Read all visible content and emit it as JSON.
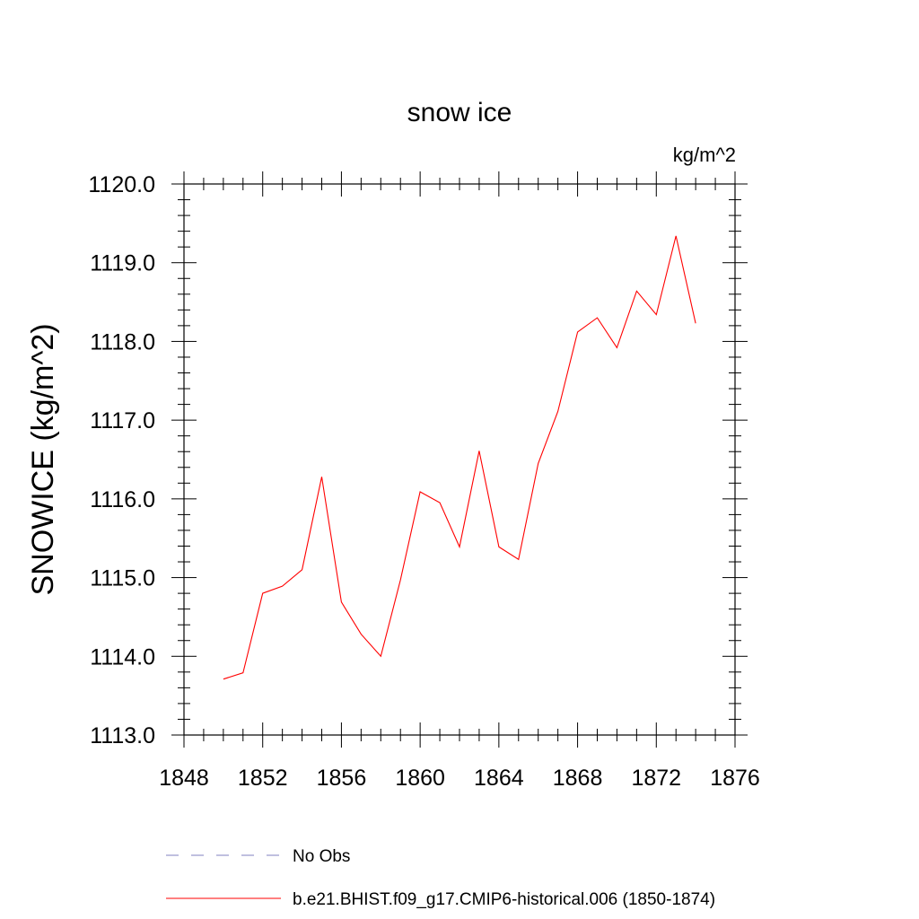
{
  "chart_data": {
    "type": "line",
    "title": "snow ice",
    "units_label": "kg/m^2",
    "ylabel": "SNOWICE  (kg/m^2)",
    "xlabel": "",
    "xlim": [
      1848,
      1876
    ],
    "ylim": [
      1113.0,
      1120.0
    ],
    "x_ticks": [
      "1848",
      "1852",
      "1856",
      "1860",
      "1864",
      "1868",
      "1872",
      "1876"
    ],
    "y_ticks": [
      "1113.0",
      "1114.0",
      "1115.0",
      "1116.0",
      "1117.0",
      "1118.0",
      "1119.0",
      "1120.0"
    ],
    "x_tick_values": [
      1848,
      1852,
      1856,
      1860,
      1864,
      1868,
      1872,
      1876
    ],
    "y_tick_values": [
      1113,
      1114,
      1115,
      1116,
      1117,
      1118,
      1119,
      1120
    ],
    "grid": false,
    "legend_position": "bottom",
    "series": [
      {
        "name": "b.e21.BHIST.f09_g17.CMIP6-historical.006 (1850-1874)",
        "color": "#ff0000",
        "style": "solid",
        "x": [
          1850,
          1851,
          1852,
          1853,
          1854,
          1855,
          1856,
          1857,
          1858,
          1859,
          1860,
          1861,
          1862,
          1863,
          1864,
          1865,
          1866,
          1867,
          1868,
          1869,
          1870,
          1871,
          1872,
          1873,
          1874
        ],
        "y": [
          1113.71,
          1113.79,
          1114.8,
          1114.89,
          1115.1,
          1116.28,
          1114.69,
          1114.28,
          1114.0,
          1114.97,
          1116.09,
          1115.95,
          1115.39,
          1116.61,
          1115.39,
          1115.23,
          1116.45,
          1117.11,
          1118.12,
          1118.3,
          1117.92,
          1118.64,
          1118.34,
          1119.34,
          1118.23
        ]
      }
    ],
    "legend": [
      {
        "label": "No Obs",
        "color": "#8080c0",
        "style": "dashed"
      },
      {
        "label": "b.e21.BHIST.f09_g17.CMIP6-historical.006 (1850-1874)",
        "color": "#ff0000",
        "style": "solid"
      }
    ]
  }
}
